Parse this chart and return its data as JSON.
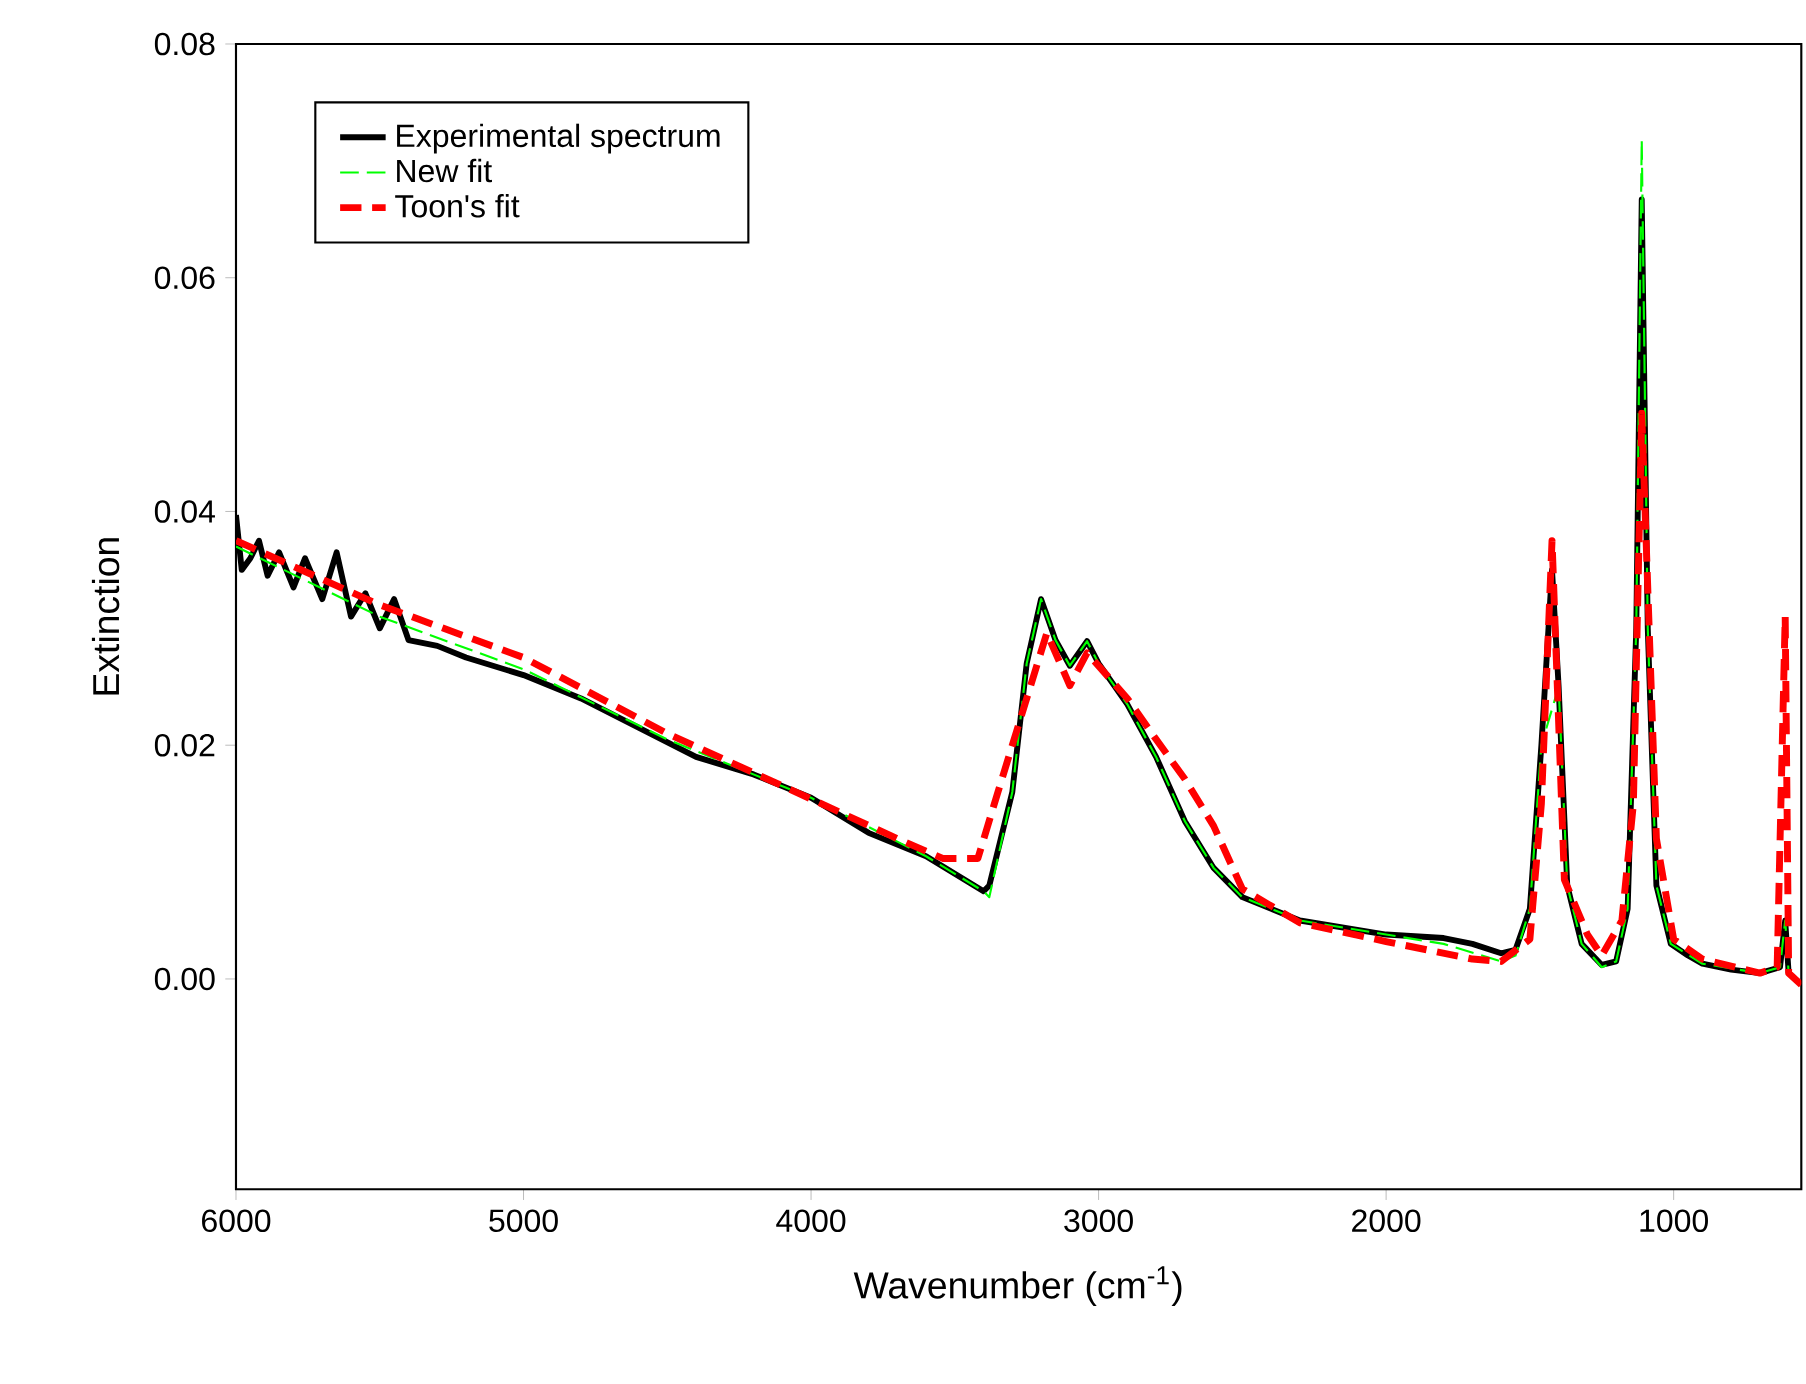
{
  "chart_data": {
    "type": "line",
    "xlabel": "Wavenumber (cm$^{-1}$)",
    "ylabel": "Extinction",
    "xlim": [
      6000,
      556
    ],
    "ylim": [
      -0.018,
      0.08
    ],
    "xticks": [
      6000,
      5000,
      4000,
      3000,
      2000,
      1000
    ],
    "yticks": [
      {
        "value": 0,
        "label": "0.00"
      },
      0.02,
      0.04,
      0.06,
      0.08
    ],
    "legend": "top left",
    "grid": false,
    "series": [
      {
        "name": "Experimental spectrum",
        "color": "#000000",
        "line_style": "solid",
        "x": [
          6000,
          5980,
          5950,
          5920,
          5890,
          5850,
          5800,
          5760,
          5700,
          5650,
          5600,
          5550,
          5500,
          5450,
          5400,
          5300,
          5200,
          5000,
          4800,
          4600,
          4400,
          4200,
          4000,
          3800,
          3600,
          3400,
          3380,
          3300,
          3250,
          3200,
          3150,
          3100,
          3040,
          3000,
          2900,
          2800,
          2700,
          2600,
          2500,
          2300,
          2100,
          2000,
          1800,
          1700,
          1600,
          1550,
          1500,
          1460,
          1423,
          1400,
          1370,
          1320,
          1250,
          1200,
          1160,
          1130,
          1111,
          1090,
          1060,
          1010,
          950,
          900,
          800,
          700,
          630,
          612,
          600
        ],
        "values": [
          0.0397,
          0.035,
          0.036,
          0.0375,
          0.0345,
          0.0365,
          0.0335,
          0.036,
          0.0325,
          0.0365,
          0.031,
          0.033,
          0.03,
          0.0325,
          0.029,
          0.0285,
          0.0275,
          0.026,
          0.024,
          0.0215,
          0.019,
          0.0175,
          0.0155,
          0.0125,
          0.0105,
          0.0075,
          0.008,
          0.016,
          0.027,
          0.0325,
          0.029,
          0.0268,
          0.0289,
          0.027,
          0.0235,
          0.019,
          0.0135,
          0.0095,
          0.007,
          0.005,
          0.0042,
          0.0038,
          0.0035,
          0.003,
          0.0022,
          0.0025,
          0.006,
          0.02,
          0.035,
          0.025,
          0.008,
          0.003,
          0.0012,
          0.0015,
          0.006,
          0.03,
          0.0667,
          0.03,
          0.008,
          0.003,
          0.002,
          0.0013,
          0.0008,
          0.0005,
          0.001,
          0.005,
          0.0005
        ]
      },
      {
        "name": "New fit",
        "color": "#00ff00",
        "line_style": "dashed",
        "x": [
          6000,
          5500,
          5000,
          4500,
          4000,
          3600,
          3400,
          3380,
          3300,
          3250,
          3200,
          3150,
          3100,
          3040,
          3000,
          2900,
          2800,
          2700,
          2600,
          2500,
          2300,
          2000,
          1800,
          1600,
          1550,
          1500,
          1460,
          1423,
          1400,
          1370,
          1320,
          1250,
          1200,
          1160,
          1130,
          1111,
          1090,
          1060,
          1010,
          900,
          700,
          630,
          612,
          600
        ],
        "values": [
          0.037,
          0.031,
          0.0265,
          0.0205,
          0.0155,
          0.0105,
          0.0075,
          0.007,
          0.016,
          0.027,
          0.0325,
          0.029,
          0.0268,
          0.0289,
          0.027,
          0.0235,
          0.019,
          0.0135,
          0.0095,
          0.007,
          0.005,
          0.0038,
          0.003,
          0.0015,
          0.002,
          0.006,
          0.02,
          null,
          0.025,
          0.008,
          0.003,
          0.001,
          0.0015,
          0.006,
          0.03,
          0.0718,
          0.03,
          0.008,
          0.003,
          0.0013,
          0.0005,
          0.001,
          0.005,
          0.0005
        ]
      },
      {
        "name": "Toon's fit",
        "color": "#ff0000",
        "line_style": "dashed",
        "x": [
          6000,
          5500,
          5000,
          4500,
          4000,
          3700,
          3540,
          3420,
          3350,
          3250,
          3180,
          3100,
          3040,
          2900,
          2800,
          2700,
          2600,
          2500,
          2300,
          2000,
          1700,
          1600,
          1500,
          1460,
          1423,
          1380,
          1300,
          1250,
          1180,
          1140,
          1111,
          1060,
          1000,
          900,
          700,
          640,
          612,
          600,
          556
        ],
        "values": [
          0.0375,
          0.032,
          0.0275,
          0.021,
          0.0154,
          0.012,
          0.0103,
          0.0103,
          0.016,
          0.024,
          0.0296,
          0.0251,
          0.0279,
          0.024,
          0.0205,
          0.0171,
          0.0131,
          0.0077,
          0.0048,
          0.0032,
          0.0017,
          0.0015,
          0.0034,
          0.015,
          0.0375,
          0.0085,
          0.0038,
          0.002,
          0.005,
          0.015,
          0.0484,
          0.012,
          0.0034,
          0.0017,
          0.0005,
          0.001,
          0.031,
          0.0005,
          -0.0005
        ]
      }
    ]
  }
}
